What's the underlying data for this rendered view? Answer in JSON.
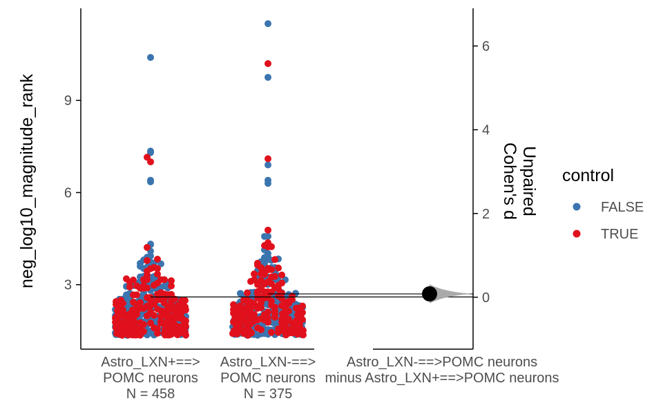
{
  "chart_data": {
    "type": "scatter",
    "subtype": "estimation-swarm-plot",
    "ylabel": "neg_log10_magnitude_rank",
    "ylim": [
      0.9,
      12.0
    ],
    "yticks": [
      "3",
      "6",
      "9"
    ],
    "y2label_line1": "Unpaired",
    "y2label_line2": "Cohen's d",
    "y2lim": [
      -1.24,
      6.9
    ],
    "y2ticks": [
      "0",
      "2",
      "4",
      "6"
    ],
    "legend": {
      "title": "control",
      "position": "right",
      "entries": [
        {
          "label": "FALSE",
          "color": "#3B75AF"
        },
        {
          "label": "TRUE",
          "color": "#E0111C"
        }
      ]
    },
    "groups": [
      {
        "name": "Astro_LXN+==>POMC neurons",
        "n_label": "N = 458",
        "n": 458,
        "mean": 2.6,
        "min": 1.35,
        "outliers_false": [
          10.4,
          7.35,
          7.3,
          6.4,
          6.35
        ],
        "outliers_true": [
          7.15,
          7.0
        ]
      },
      {
        "name": "Astro_LXN-==>POMC neurons",
        "n_label": "N = 375",
        "n": 375,
        "mean": 2.7,
        "min": 1.35,
        "outliers_false": [
          11.5,
          9.75,
          6.9,
          6.4,
          6.3
        ],
        "outliers_true": [
          10.2,
          7.1
        ]
      }
    ],
    "effect": {
      "label_line1": "Astro_LXN-==>POMC neurons",
      "label_line2": "minus Astro_LXN+==>POMC neurons",
      "cohens_d": 0.08,
      "ci": [
        -0.05,
        0.21
      ]
    }
  }
}
